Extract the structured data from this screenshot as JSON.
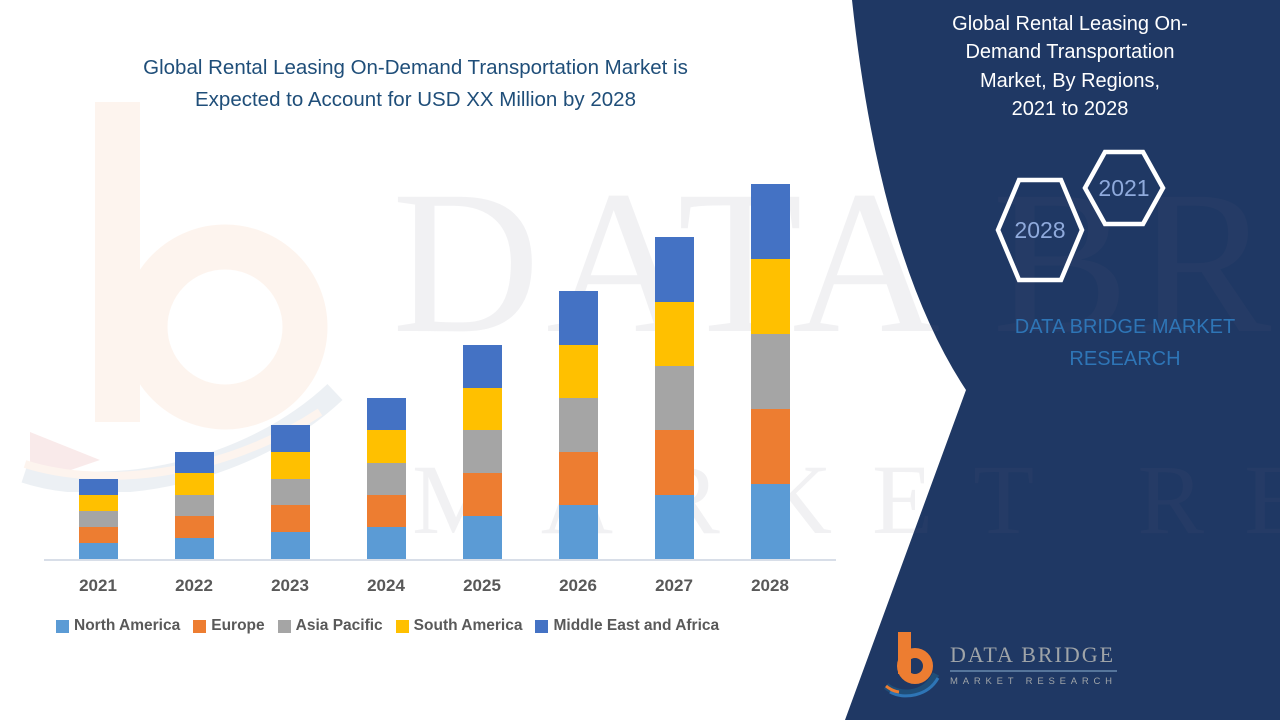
{
  "page": {
    "background": "#FFFFFF",
    "accent_navy": "#1F3864",
    "title_blue": "#1F4E79"
  },
  "header": {
    "title_lines": [
      "Global Rental Leasing On-Demand Transportation Market is",
      "Expected to Account for USD XX Million by 2028"
    ]
  },
  "watermark": {
    "line1": "DATA BRIDGE",
    "line2": "MARKET RESEARCH",
    "logo": "data-bridge-b-mark"
  },
  "chart_data": {
    "type": "bar",
    "stacked": true,
    "title": "",
    "xlabel": "",
    "ylabel": "",
    "categories": [
      "2021",
      "2022",
      "2023",
      "2024",
      "2025",
      "2026",
      "2027",
      "2028"
    ],
    "series": [
      {
        "name": "North America",
        "color": "#5B9BD5",
        "values": [
          3,
          4,
          5,
          6,
          8,
          10,
          12,
          14
        ]
      },
      {
        "name": "Europe",
        "color": "#ED7D31",
        "values": [
          3,
          4,
          5,
          6,
          8,
          10,
          12,
          14
        ]
      },
      {
        "name": "Asia Pacific",
        "color": "#A5A5A5",
        "values": [
          3,
          4,
          5,
          6,
          8,
          10,
          12,
          14
        ]
      },
      {
        "name": "South America",
        "color": "#FFC000",
        "values": [
          3,
          4,
          5,
          6,
          8,
          10,
          12,
          14
        ]
      },
      {
        "name": "Middle East and Africa",
        "color": "#4472C4",
        "values": [
          3,
          4,
          5,
          6,
          8,
          10,
          12,
          14
        ]
      }
    ],
    "stack_totals": [
      15,
      20,
      25,
      30,
      40,
      50,
      60,
      70
    ],
    "values_note": "relative units estimated from bar heights; actual values shown as USD XX Million",
    "ylim": [
      0,
      75
    ],
    "y_axis_visible": false,
    "gridlines": false,
    "legend_position": "bottom"
  },
  "side_panel": {
    "background": "#1F3864",
    "title_lines": [
      "Global Rental Leasing On-",
      "Demand Transportation",
      "Market, By Regions,",
      "2021 to 2028"
    ],
    "hexagons": [
      {
        "label": "2028"
      },
      {
        "label": "2021"
      }
    ],
    "brand": "DATA BRIDGE MARKET RESEARCH"
  },
  "footer_logo": {
    "wordmark": "DATA BRIDGE",
    "subtitle": "MARKET RESEARCH"
  }
}
